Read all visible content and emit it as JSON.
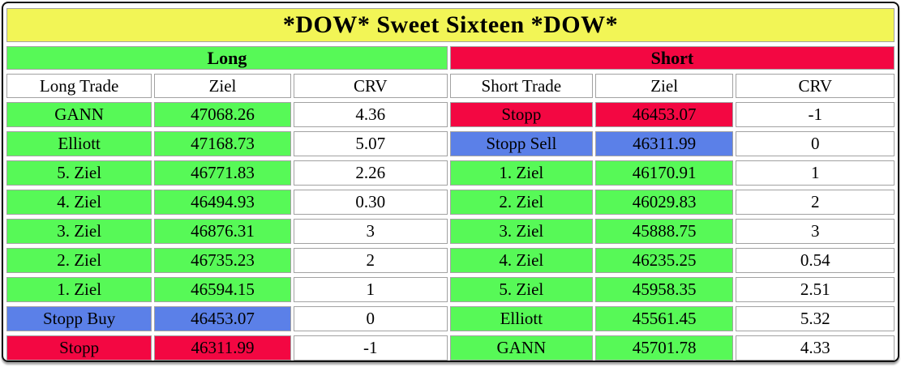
{
  "title": "*DOW* Sweet Sixteen *DOW*",
  "colors": {
    "yellow": "#F2F556",
    "green": "#57F957",
    "red": "#F30742",
    "blue": "#5B80E8",
    "cell_border": "#A2A2A2",
    "frame": "#111111"
  },
  "sections": [
    {
      "id": "long",
      "label": "Long",
      "columns": [
        "Long Trade",
        "Ziel",
        "CRV"
      ],
      "rows": [
        {
          "trade": "GANN",
          "ziel": "47068.26",
          "crv": "4.36",
          "highlight": "green"
        },
        {
          "trade": "Elliott",
          "ziel": "47168.73",
          "crv": "5.07",
          "highlight": "green"
        },
        {
          "trade": "5. Ziel",
          "ziel": "46771.83",
          "crv": "2.26",
          "highlight": "green"
        },
        {
          "trade": "4. Ziel",
          "ziel": "46494.93",
          "crv": "0.30",
          "highlight": "green"
        },
        {
          "trade": "3. Ziel",
          "ziel": "46876.31",
          "crv": "3",
          "highlight": "green"
        },
        {
          "trade": "2. Ziel",
          "ziel": "46735.23",
          "crv": "2",
          "highlight": "green"
        },
        {
          "trade": "1. Ziel",
          "ziel": "46594.15",
          "crv": "1",
          "highlight": "green"
        },
        {
          "trade": "Stopp Buy",
          "ziel": "46453.07",
          "crv": "0",
          "highlight": "blue"
        },
        {
          "trade": "Stopp",
          "ziel": "46311.99",
          "crv": "-1",
          "highlight": "red"
        }
      ]
    },
    {
      "id": "short",
      "label": "Short",
      "columns": [
        "Short Trade",
        "Ziel",
        "CRV"
      ],
      "rows": [
        {
          "trade": "Stopp",
          "ziel": "46453.07",
          "crv": "-1",
          "highlight": "red"
        },
        {
          "trade": "Stopp Sell",
          "ziel": "46311.99",
          "crv": "0",
          "highlight": "blue"
        },
        {
          "trade": "1. Ziel",
          "ziel": "46170.91",
          "crv": "1",
          "highlight": "green"
        },
        {
          "trade": "2. Ziel",
          "ziel": "46029.83",
          "crv": "2",
          "highlight": "green"
        },
        {
          "trade": "3. Ziel",
          "ziel": "45888.75",
          "crv": "3",
          "highlight": "green"
        },
        {
          "trade": "4. Ziel",
          "ziel": "46235.25",
          "crv": "0.54",
          "highlight": "green"
        },
        {
          "trade": "5. Ziel",
          "ziel": "45958.35",
          "crv": "2.51",
          "highlight": "green"
        },
        {
          "trade": "Elliott",
          "ziel": "45561.45",
          "crv": "5.32",
          "highlight": "green"
        },
        {
          "trade": "GANN",
          "ziel": "45701.78",
          "crv": "4.33",
          "highlight": "green"
        }
      ]
    }
  ]
}
